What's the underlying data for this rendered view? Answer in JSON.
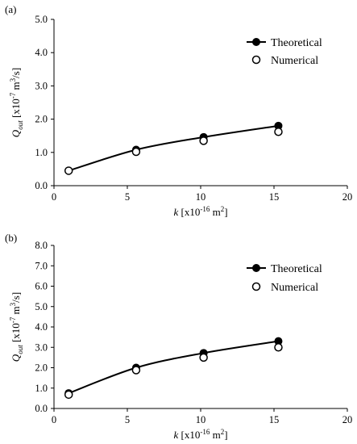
{
  "chart_data": [
    {
      "panel_label": "(a)",
      "type": "scatter",
      "xlabel": {
        "main": "k",
        "unit_pre": " [x10",
        "unit_exp": "-16",
        "unit_mid": " m",
        "unit_exp2": "2",
        "unit_post": "]"
      },
      "ylabel": {
        "main": "Q",
        "sub": "out",
        "unit_pre": " [x10",
        "unit_exp": "-7",
        "unit_mid": " m",
        "unit_exp2": "3",
        "unit_post": "/s]"
      },
      "xlim": [
        0,
        20
      ],
      "ylim": [
        0,
        5
      ],
      "xticks": [
        "0",
        "5",
        "10",
        "15",
        "20"
      ],
      "yticks": [
        "0.0",
        "1.0",
        "2.0",
        "3.0",
        "4.0",
        "5.0"
      ],
      "legend_position": "top-right",
      "series": [
        {
          "name": "Theoretical",
          "marker": "filled",
          "line": true,
          "x": [
            1.0,
            5.6,
            10.2,
            15.3
          ],
          "y": [
            0.45,
            1.08,
            1.46,
            1.8
          ]
        },
        {
          "name": "Numerical",
          "marker": "open",
          "line": false,
          "x": [
            1.0,
            5.6,
            10.2,
            15.3
          ],
          "y": [
            0.45,
            1.02,
            1.35,
            1.62
          ]
        }
      ]
    },
    {
      "panel_label": "(b)",
      "type": "scatter",
      "xlabel": {
        "main": "k",
        "unit_pre": " [x10",
        "unit_exp": "-16",
        "unit_mid": " m",
        "unit_exp2": "2",
        "unit_post": "]"
      },
      "ylabel": {
        "main": "Q",
        "sub": "out",
        "unit_pre": " [x10",
        "unit_exp": "-7",
        "unit_mid": " m",
        "unit_exp2": "3",
        "unit_post": "/s]"
      },
      "xlim": [
        0,
        20
      ],
      "ylim": [
        0,
        8
      ],
      "xticks": [
        "0",
        "5",
        "10",
        "15",
        "20"
      ],
      "yticks": [
        "0.0",
        "1.0",
        "2.0",
        "3.0",
        "4.0",
        "5.0",
        "6.0",
        "7.0",
        "8.0"
      ],
      "legend_position": "top-right",
      "series": [
        {
          "name": "Theoretical",
          "marker": "filled",
          "line": true,
          "x": [
            1.0,
            5.6,
            10.2,
            15.3
          ],
          "y": [
            0.75,
            2.0,
            2.72,
            3.3
          ]
        },
        {
          "name": "Numerical",
          "marker": "open",
          "line": false,
          "x": [
            1.0,
            5.6,
            10.2,
            15.3
          ],
          "y": [
            0.68,
            1.88,
            2.5,
            3.0
          ]
        }
      ]
    }
  ]
}
